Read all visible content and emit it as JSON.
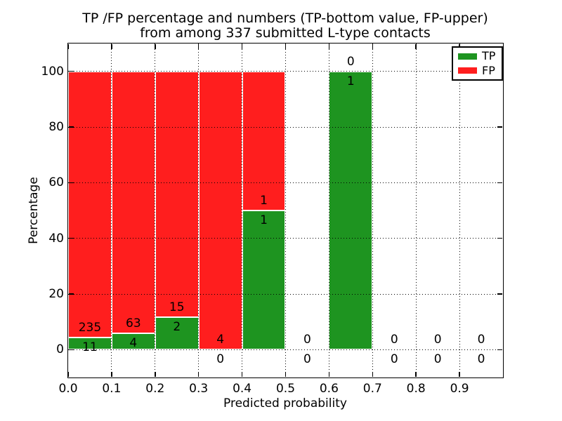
{
  "chart_data": {
    "type": "bar",
    "stacked": true,
    "title_line1": "TP /FP percentage and numbers (TP-bottom value, FP-upper)",
    "title_line2": "from among 337 submitted L-type contacts",
    "xlabel": "Predicted probability",
    "ylabel": "Percentage",
    "total_submitted": 337,
    "xlim": [
      0.0,
      1.0
    ],
    "ylim": [
      -10,
      110
    ],
    "xticks": [
      0.0,
      0.1,
      0.2,
      0.3,
      0.4,
      0.5,
      0.6,
      0.7,
      0.8,
      0.9
    ],
    "xtick_labels": [
      "0.0",
      "0.1",
      "0.2",
      "0.3",
      "0.4",
      "0.5",
      "0.6",
      "0.7",
      "0.8",
      "0.9"
    ],
    "yticks": [
      0,
      20,
      40,
      60,
      80,
      100
    ],
    "ytick_labels": [
      "0",
      "20",
      "40",
      "60",
      "80",
      "100"
    ],
    "grid": "dotted",
    "bin_width": 0.1,
    "categories": [
      "0.0-0.1",
      "0.1-0.2",
      "0.2-0.3",
      "0.3-0.4",
      "0.4-0.5",
      "0.5-0.6",
      "0.6-0.7",
      "0.7-0.8",
      "0.8-0.9",
      "0.9-1.0"
    ],
    "series": [
      {
        "name": "TP",
        "color": "#1E9420",
        "counts": [
          11,
          4,
          2,
          0,
          1,
          0,
          1,
          0,
          0,
          0
        ],
        "pct": [
          4.47,
          5.97,
          11.76,
          0,
          50,
          0,
          100,
          0,
          0,
          0
        ]
      },
      {
        "name": "FP",
        "color": "#FF1E1E",
        "counts": [
          235,
          63,
          15,
          4,
          1,
          0,
          0,
          0,
          0,
          0
        ],
        "pct": [
          95.53,
          94.03,
          88.24,
          100,
          50,
          0,
          0,
          0,
          0,
          0
        ]
      }
    ],
    "legend": {
      "position": "upper-right",
      "entries": [
        {
          "label": "TP",
          "color": "#1E9420"
        },
        {
          "label": "FP",
          "color": "#FF1E1E"
        }
      ]
    }
  }
}
